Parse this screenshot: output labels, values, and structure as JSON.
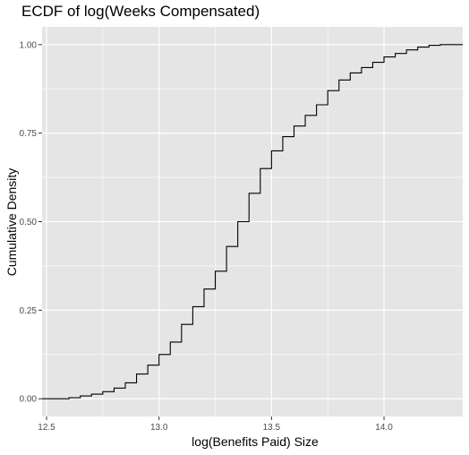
{
  "chart_data": {
    "type": "line",
    "title": "ECDF of log(Weeks Compensated)",
    "xlabel": "log(Benefits Paid) Size",
    "ylabel": "Cumulative Density",
    "xlim": [
      12.48,
      14.35
    ],
    "ylim": [
      -0.05,
      1.05
    ],
    "x_ticks": [
      12.5,
      13.0,
      13.5,
      14.0
    ],
    "x_tick_labels": [
      "12.5",
      "13.0",
      "13.5",
      "14.0"
    ],
    "y_ticks": [
      0.0,
      0.25,
      0.5,
      0.75,
      1.0
    ],
    "y_tick_labels": [
      "0.00",
      "0.25",
      "0.50",
      "0.75",
      "1.00"
    ],
    "grid": true,
    "panel_background": "#e5e5e5",
    "grid_color": "#ffffff",
    "line_color": "#000000",
    "series": [
      {
        "x": [
          12.48,
          12.55,
          12.6,
          12.65,
          12.7,
          12.75,
          12.8,
          12.85,
          12.9,
          12.95,
          13.0,
          13.05,
          13.1,
          13.15,
          13.2,
          13.25,
          13.3,
          13.35,
          13.4,
          13.45,
          13.5,
          13.55,
          13.6,
          13.65,
          13.7,
          13.75,
          13.8,
          13.85,
          13.9,
          13.95,
          14.0,
          14.05,
          14.1,
          14.15,
          14.2,
          14.25,
          14.3,
          14.35
        ],
        "y": [
          0.0,
          0.0,
          0.003,
          0.008,
          0.013,
          0.02,
          0.03,
          0.045,
          0.07,
          0.095,
          0.125,
          0.16,
          0.21,
          0.26,
          0.31,
          0.36,
          0.43,
          0.5,
          0.58,
          0.65,
          0.7,
          0.74,
          0.77,
          0.8,
          0.83,
          0.87,
          0.9,
          0.92,
          0.935,
          0.95,
          0.965,
          0.975,
          0.985,
          0.993,
          0.998,
          1.0,
          1.0,
          1.0
        ]
      }
    ]
  }
}
